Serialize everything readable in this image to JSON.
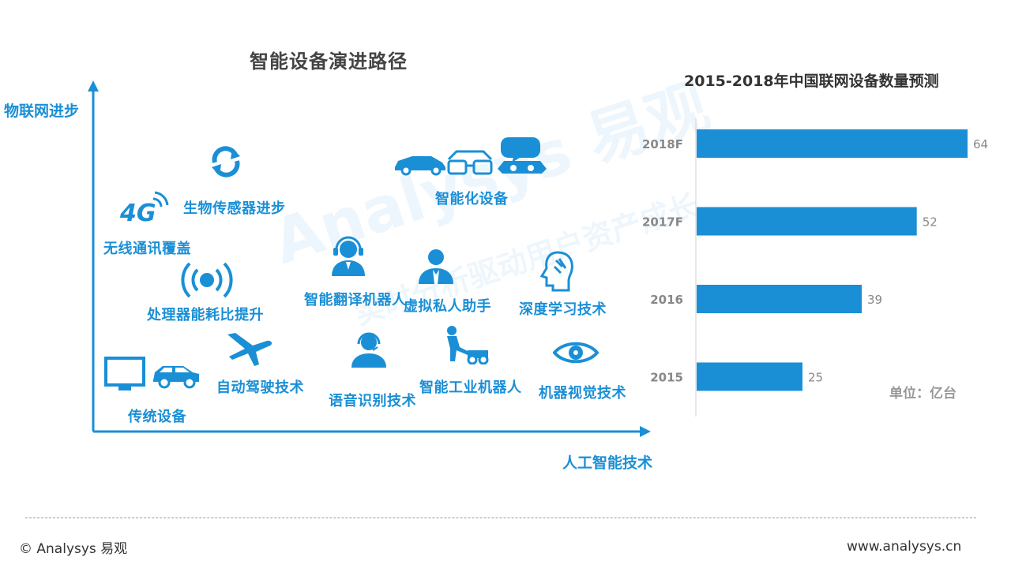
{
  "left_panel": {
    "title": "智能设备演进路径",
    "y_axis_label": "物联网进步",
    "x_axis_label": "人工智能技术",
    "items": [
      {
        "label": "传统设备",
        "icon": "tv-car-icon"
      },
      {
        "label": "自动驾驶技术",
        "icon": "airplane-icon"
      },
      {
        "label": "处理器能耗比提升",
        "icon": "signal-broadcast-icon"
      },
      {
        "label": "无线通讯覆盖",
        "icon": "4g-icon"
      },
      {
        "label": "生物传感器进步",
        "icon": "sync-icon"
      },
      {
        "label": "智能翻译机器人",
        "icon": "headset-person-icon"
      },
      {
        "label": "语音识别技术",
        "icon": "headset-operator-icon"
      },
      {
        "label": "虚拟私人助手",
        "icon": "assistant-person-icon"
      },
      {
        "label": "智能工业机器人",
        "icon": "lawnmower-person-icon"
      },
      {
        "label": "深度学习技术",
        "icon": "head-profile-icon"
      },
      {
        "label": "机器视觉技术",
        "icon": "eye-icon"
      },
      {
        "label": "智能化设备",
        "icon": "smart-devices-icon"
      }
    ],
    "icon_text_4g": "4G"
  },
  "chart_data": {
    "type": "bar",
    "orientation": "horizontal",
    "title": "2015-2018年中国联网设备数量预测",
    "categories": [
      "2018F",
      "2017F",
      "2016",
      "2015"
    ],
    "values": [
      64,
      52,
      39,
      25
    ],
    "unit": "单位：亿台",
    "xlim": [
      0,
      64
    ],
    "bar_color": "#1a8fd6",
    "grid": false,
    "legend": "none"
  },
  "watermark": {
    "main": "Analysys 易观",
    "sub": "实时分析驱动用户资产成长"
  },
  "footer": {
    "left": "© Analysys 易观",
    "right": "www.analysys.cn"
  },
  "colors": {
    "accent": "#1a8fd6",
    "title_text": "#444444",
    "muted": "#999999"
  }
}
